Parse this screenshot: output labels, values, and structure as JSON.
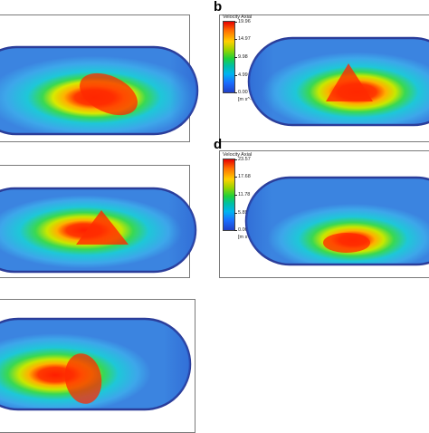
{
  "panels": {
    "b": {
      "letter": "b"
    },
    "d": {
      "letter": "d"
    }
  },
  "colorbars": {
    "b": {
      "title": "Velocity Axial",
      "ticks": [
        "19.96",
        "14.97",
        "9.98",
        "4.99",
        "0.00"
      ],
      "unit": "[m s^-1]"
    },
    "d": {
      "title": "Velocity Axial",
      "ticks": [
        "23.57",
        "17.68",
        "11.78",
        "5.89",
        "0.00"
      ],
      "unit": "[m s^-1]"
    }
  },
  "colors": {
    "boundary": "#2a3d9a",
    "low": "#2f6fd6",
    "mid": "#18c3e6",
    "high": "#ff2a00"
  }
}
